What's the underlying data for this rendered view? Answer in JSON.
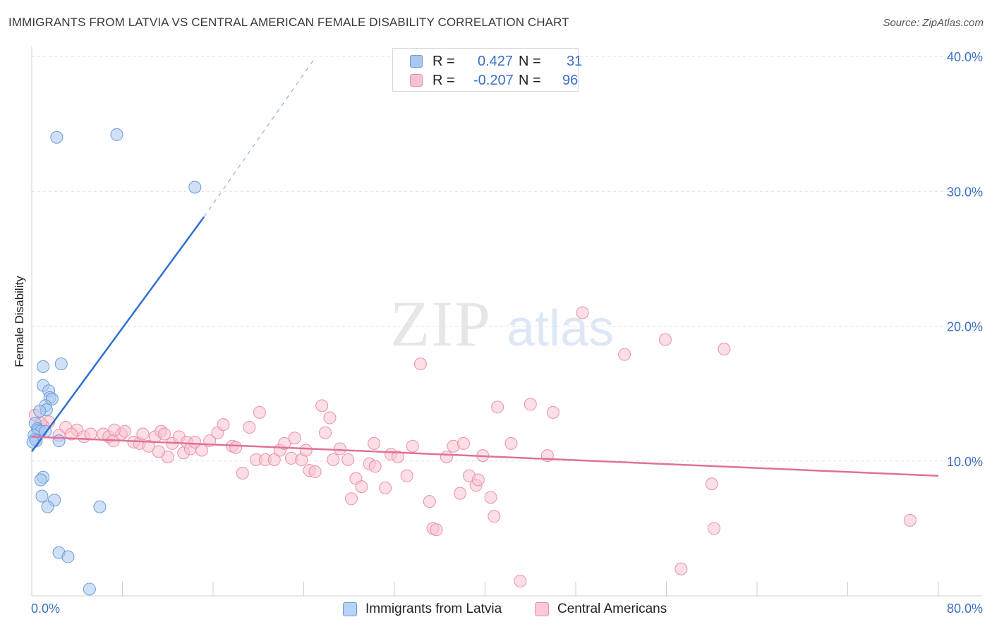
{
  "header": {
    "title": "IMMIGRANTS FROM LATVIA VS CENTRAL AMERICAN FEMALE DISABILITY CORRELATION CHART",
    "source": "Source: ZipAtlas.com"
  },
  "watermark": {
    "zip": "ZIP",
    "atlas": "atlas"
  },
  "legend": {
    "r_label": "R =",
    "n_label": "N =",
    "rows": [
      {
        "r": "0.427",
        "n": "31",
        "color": "#a9c8f0",
        "border": "#6c9bd8"
      },
      {
        "r": "-0.207",
        "n": "96",
        "color": "#f9c2d0",
        "border": "#e891a8"
      }
    ]
  },
  "bottom_legend": [
    {
      "label": "Immigrants from Latvia",
      "color": "#b9d3f4",
      "border": "#6c9bd8"
    },
    {
      "label": "Central Americans",
      "color": "#fbcad7",
      "border": "#e891a8"
    }
  ],
  "chart_data": {
    "type": "scatter",
    "ylabel": "Female Disability",
    "xlim": [
      0,
      80
    ],
    "ylim": [
      0,
      40
    ],
    "x_tick_labels": [
      {
        "value": 0,
        "label": "0.0%"
      },
      {
        "value": 80,
        "label": "80.0%"
      }
    ],
    "y_tick_labels": [
      {
        "value": 10,
        "label": "10.0%"
      },
      {
        "value": 20,
        "label": "20.0%"
      },
      {
        "value": 30,
        "label": "30.0%"
      },
      {
        "value": 40,
        "label": "40.0%"
      }
    ],
    "grid": true,
    "colors": {
      "latvia_fill": "#a9c8f0",
      "latvia_stroke": "#6c9bd8",
      "latvia_line": "#2f6fd0",
      "central_fill": "#f9c2d0",
      "central_stroke": "#e891a8",
      "central_line": "#e0719a",
      "axis_text": "#3b6fc4",
      "grid": "#e2e2e2"
    },
    "series": [
      {
        "name": "Immigrants from Latvia",
        "trend": {
          "x0": 0,
          "y0": 10.7,
          "x1": 15.2,
          "y1": 28.1,
          "dash_to_x": 25,
          "dash_to_y": 39.9
        },
        "points": [
          [
            2.2,
            34.0
          ],
          [
            7.5,
            34.2
          ],
          [
            14.4,
            30.3
          ],
          [
            1.0,
            17.0
          ],
          [
            2.6,
            17.2
          ],
          [
            1.0,
            15.6
          ],
          [
            1.5,
            15.2
          ],
          [
            1.6,
            14.7
          ],
          [
            1.8,
            14.6
          ],
          [
            1.2,
            14.1
          ],
          [
            1.3,
            13.8
          ],
          [
            0.7,
            13.7
          ],
          [
            0.3,
            12.8
          ],
          [
            0.5,
            12.4
          ],
          [
            0.6,
            12.3
          ],
          [
            0.8,
            12.2
          ],
          [
            1.2,
            12.2
          ],
          [
            0.2,
            11.9
          ],
          [
            0.3,
            11.6
          ],
          [
            0.4,
            11.5
          ],
          [
            0.1,
            11.4
          ],
          [
            2.4,
            11.5
          ],
          [
            1.0,
            8.8
          ],
          [
            0.8,
            8.6
          ],
          [
            0.9,
            7.4
          ],
          [
            2.0,
            7.1
          ],
          [
            1.4,
            6.6
          ],
          [
            6.0,
            6.6
          ],
          [
            2.4,
            3.2
          ],
          [
            3.2,
            2.9
          ],
          [
            5.1,
            0.5
          ]
        ]
      },
      {
        "name": "Central Americans",
        "trend": {
          "x0": 0,
          "y0": 11.8,
          "x1": 80,
          "y1": 8.9
        },
        "points": [
          [
            0.3,
            13.4
          ],
          [
            1.5,
            12.9
          ],
          [
            3.0,
            12.5
          ],
          [
            4.0,
            12.3
          ],
          [
            4.6,
            11.8
          ],
          [
            5.2,
            12.0
          ],
          [
            6.3,
            12.0
          ],
          [
            6.8,
            11.8
          ],
          [
            7.2,
            11.5
          ],
          [
            7.9,
            12.0
          ],
          [
            7.3,
            12.3
          ],
          [
            8.2,
            12.2
          ],
          [
            9.0,
            11.4
          ],
          [
            9.5,
            11.3
          ],
          [
            9.8,
            12.0
          ],
          [
            10.3,
            11.1
          ],
          [
            10.9,
            11.8
          ],
          [
            11.4,
            12.2
          ],
          [
            11.7,
            12.0
          ],
          [
            12.0,
            10.3
          ],
          [
            11.2,
            10.7
          ],
          [
            12.4,
            11.3
          ],
          [
            13.0,
            11.8
          ],
          [
            13.4,
            10.6
          ],
          [
            13.7,
            11.4
          ],
          [
            14.0,
            10.9
          ],
          [
            14.4,
            11.4
          ],
          [
            15.0,
            10.8
          ],
          [
            15.7,
            11.5
          ],
          [
            16.4,
            12.1
          ],
          [
            16.9,
            12.7
          ],
          [
            17.7,
            11.1
          ],
          [
            18.0,
            11.0
          ],
          [
            18.6,
            9.1
          ],
          [
            19.2,
            12.5
          ],
          [
            19.8,
            10.1
          ],
          [
            20.1,
            13.6
          ],
          [
            20.6,
            10.1
          ],
          [
            21.4,
            10.1
          ],
          [
            21.9,
            10.8
          ],
          [
            22.3,
            11.3
          ],
          [
            22.9,
            10.2
          ],
          [
            23.2,
            11.7
          ],
          [
            23.8,
            10.1
          ],
          [
            24.2,
            10.8
          ],
          [
            24.5,
            9.3
          ],
          [
            25.0,
            9.2
          ],
          [
            25.6,
            14.1
          ],
          [
            25.9,
            12.1
          ],
          [
            26.3,
            13.2
          ],
          [
            26.6,
            10.1
          ],
          [
            27.2,
            10.9
          ],
          [
            27.9,
            10.1
          ],
          [
            28.2,
            7.2
          ],
          [
            28.6,
            8.7
          ],
          [
            29.1,
            8.1
          ],
          [
            29.8,
            9.8
          ],
          [
            30.2,
            11.3
          ],
          [
            30.3,
            9.6
          ],
          [
            31.2,
            8.0
          ],
          [
            31.7,
            10.5
          ],
          [
            32.3,
            10.3
          ],
          [
            33.1,
            8.9
          ],
          [
            33.6,
            11.1
          ],
          [
            34.3,
            17.2
          ],
          [
            35.1,
            7.0
          ],
          [
            35.4,
            5.0
          ],
          [
            35.7,
            4.9
          ],
          [
            36.6,
            10.3
          ],
          [
            37.2,
            11.1
          ],
          [
            37.8,
            7.6
          ],
          [
            38.1,
            11.3
          ],
          [
            38.6,
            8.9
          ],
          [
            39.2,
            8.2
          ],
          [
            39.4,
            8.6
          ],
          [
            39.8,
            10.4
          ],
          [
            40.5,
            7.3
          ],
          [
            40.8,
            5.9
          ],
          [
            41.1,
            14.0
          ],
          [
            42.3,
            11.3
          ],
          [
            43.1,
            1.1
          ],
          [
            44.0,
            14.2
          ],
          [
            45.5,
            10.4
          ],
          [
            46.0,
            13.6
          ],
          [
            48.6,
            21.0
          ],
          [
            52.3,
            17.9
          ],
          [
            55.9,
            19.0
          ],
          [
            57.3,
            2.0
          ],
          [
            60.0,
            8.3
          ],
          [
            60.2,
            5.0
          ],
          [
            61.1,
            18.3
          ],
          [
            77.5,
            5.6
          ],
          [
            1.0,
            12.6
          ],
          [
            2.4,
            11.9
          ],
          [
            0.8,
            12.8
          ],
          [
            3.5,
            12.0
          ]
        ]
      }
    ]
  }
}
